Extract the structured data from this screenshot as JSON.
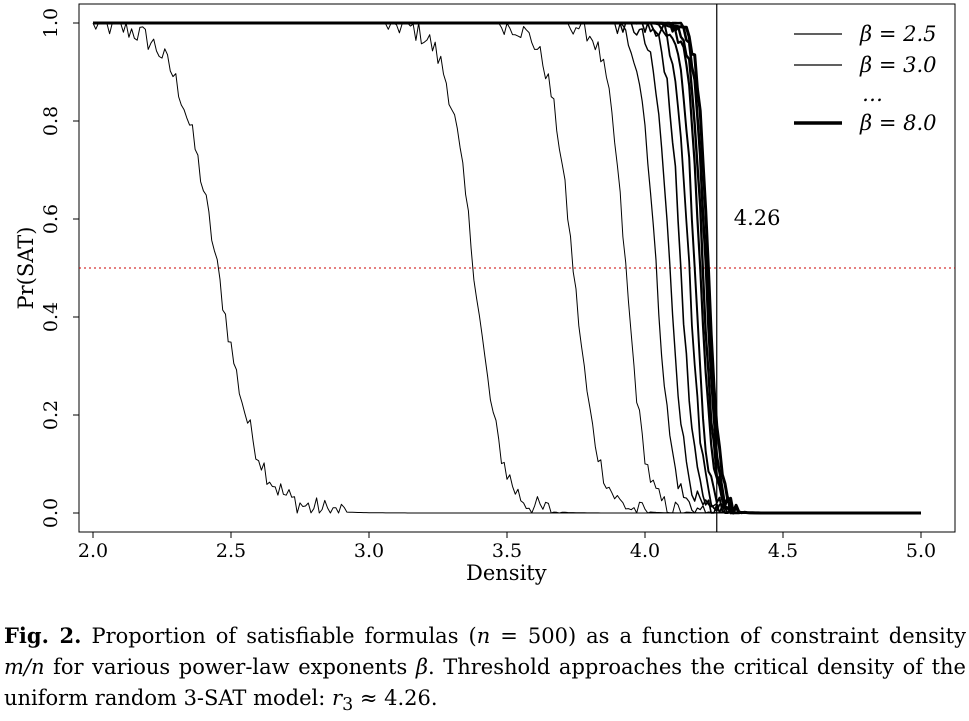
{
  "chart_data": {
    "type": "line",
    "xlabel": "Density",
    "ylabel": "Pr(SAT)",
    "xlim": [
      2.0,
      5.0
    ],
    "ylim": [
      0.0,
      1.0
    ],
    "x_ticks": [
      "2.0",
      "2.5",
      "3.0",
      "3.5",
      "4.0",
      "4.5",
      "5.0"
    ],
    "y_ticks": [
      "0.0",
      "0.2",
      "0.4",
      "0.6",
      "0.8",
      "1.0"
    ],
    "reference_lines": [
      {
        "orientation": "vertical",
        "x": 4.26,
        "label": "4.26",
        "color": "#000000",
        "style": "solid"
      },
      {
        "orientation": "horizontal",
        "y": 0.5,
        "color": "#cc0000",
        "style": "dotted"
      }
    ],
    "legend": {
      "position": "top-right",
      "entries": [
        {
          "label": "β = 2.5",
          "weight": "thin"
        },
        {
          "label": "β = 3.0",
          "weight": "thin"
        },
        {
          "label": "…",
          "weight": "none"
        },
        {
          "label": "β = 8.0",
          "weight": "thick"
        }
      ]
    },
    "series": [
      {
        "midpoint": 2.45,
        "width": 0.075,
        "stroke_width": 1.0,
        "noise": 0.025
      },
      {
        "midpoint": 3.38,
        "width": 0.05,
        "stroke_width": 1.0,
        "noise": 0.025
      },
      {
        "midpoint": 3.74,
        "width": 0.045,
        "stroke_width": 1.0,
        "noise": 0.02
      },
      {
        "midpoint": 3.93,
        "width": 0.035,
        "stroke_width": 1.0,
        "noise": 0.02
      },
      {
        "midpoint": 4.04,
        "width": 0.03,
        "stroke_width": 1.2,
        "noise": 0.02
      },
      {
        "midpoint": 4.09,
        "width": 0.028,
        "stroke_width": 1.4,
        "noise": 0.018
      },
      {
        "midpoint": 4.13,
        "width": 0.025,
        "stroke_width": 1.6,
        "noise": 0.018
      },
      {
        "midpoint": 4.16,
        "width": 0.024,
        "stroke_width": 1.8,
        "noise": 0.018
      },
      {
        "midpoint": 4.18,
        "width": 0.022,
        "stroke_width": 2.0,
        "noise": 0.016
      },
      {
        "midpoint": 4.2,
        "width": 0.022,
        "stroke_width": 2.2,
        "noise": 0.016
      },
      {
        "midpoint": 4.21,
        "width": 0.021,
        "stroke_width": 2.4,
        "noise": 0.016
      },
      {
        "midpoint": 4.22,
        "width": 0.02,
        "stroke_width": 2.6,
        "noise": 0.016
      },
      {
        "midpoint": 4.23,
        "width": 0.02,
        "stroke_width": 3.0,
        "noise": 0.016
      }
    ]
  },
  "caption": {
    "label": "Fig. 2.",
    "part1": "Proportion of satisfiable formulas (",
    "n_var": "n",
    "n_eq": " = 500) as a function of constraint density",
    "mn": "m/n",
    "part2": " for various power-law exponents ",
    "beta": "β",
    "part3": ". Threshold approaches the critical density of the uniform random 3-SAT model: ",
    "r_sym": "r",
    "r_sub": "3",
    "approx": " ≈ 4.26."
  }
}
